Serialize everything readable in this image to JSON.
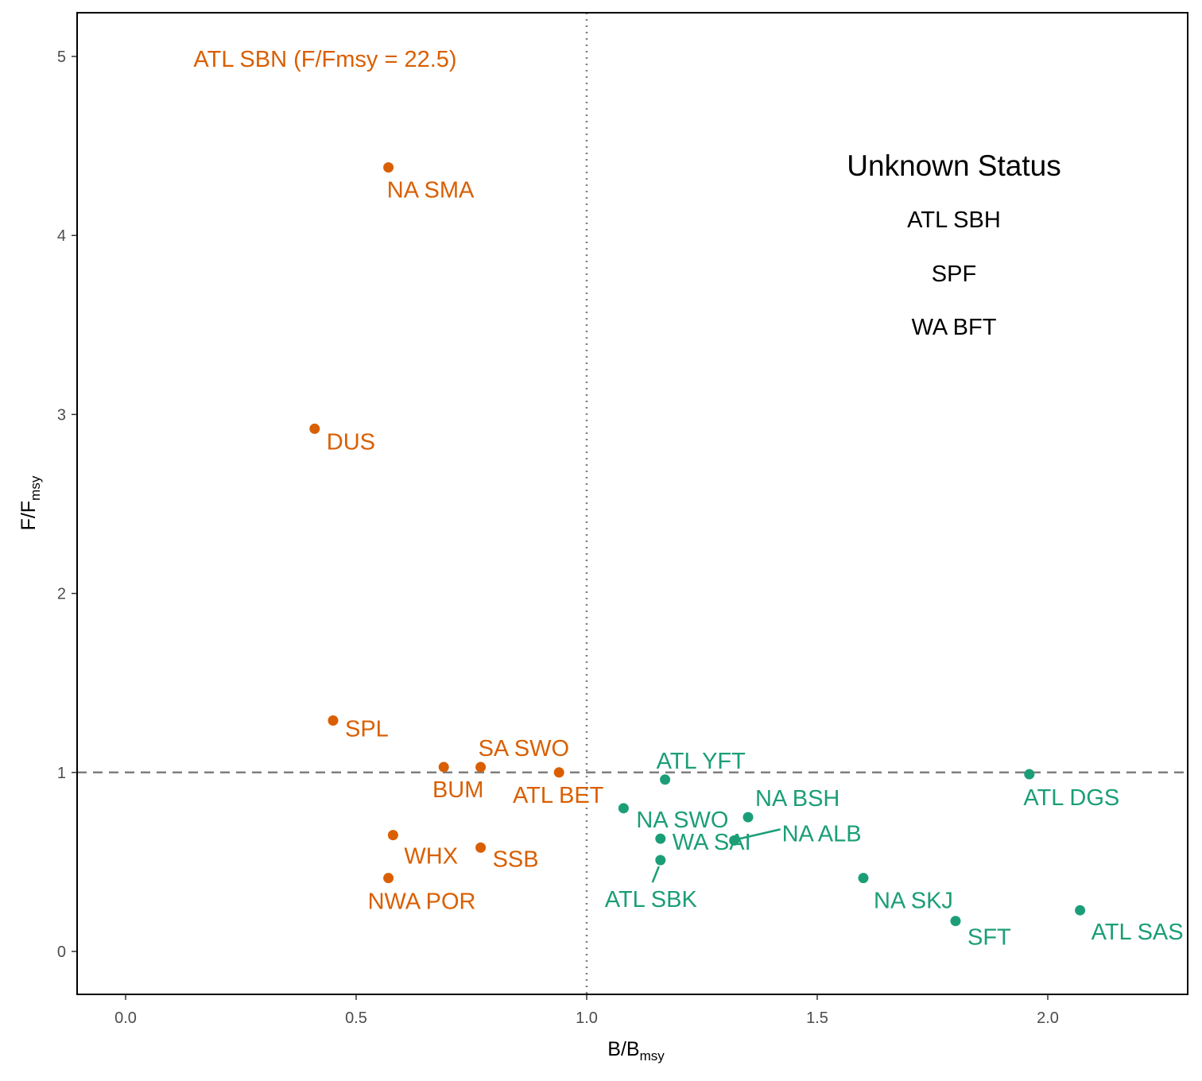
{
  "colors": {
    "overfished": "#d95f02",
    "healthy": "#1b9e77",
    "refline": "#7f7f7f",
    "text": "#000000",
    "tick": "#4d4d4d"
  },
  "chart_data": {
    "type": "scatter",
    "xlabel": {
      "main": "B/B",
      "sub": "msy"
    },
    "ylabel": {
      "main": "F/F",
      "sub": "msy"
    },
    "xlim": [
      -0.1,
      2.3
    ],
    "ylim": [
      -0.24,
      5.25
    ],
    "x_ticks": [
      "0.0",
      "0.5",
      "1.0",
      "1.5",
      "2.0"
    ],
    "y_ticks": [
      "0",
      "1",
      "2",
      "3",
      "4",
      "5"
    ],
    "grid": false,
    "reference_lines": [
      {
        "axis": "x",
        "value": 1.0,
        "style": "dotted"
      },
      {
        "axis": "y",
        "value": 1.0,
        "style": "dashed"
      }
    ],
    "offscale_note": {
      "label": "ATL SBN (F/Fmsy = 22.5)",
      "x": 0.38,
      "y": 5.0,
      "group": "overfished"
    },
    "series": [
      {
        "group": "overfished",
        "points": [
          {
            "label": "NA SMA",
            "x": 0.57,
            "y": 4.38
          },
          {
            "label": "DUS",
            "x": 0.41,
            "y": 2.92
          },
          {
            "label": "SPL",
            "x": 0.45,
            "y": 1.29
          },
          {
            "label": "SA SWO",
            "x": 0.77,
            "y": 1.03
          },
          {
            "label": "BUM",
            "x": 0.69,
            "y": 1.03
          },
          {
            "label": "ATL BET",
            "x": 0.94,
            "y": 1.0
          },
          {
            "label": "WHX",
            "x": 0.58,
            "y": 0.65
          },
          {
            "label": "SSB",
            "x": 0.77,
            "y": 0.58
          },
          {
            "label": "NWA POR",
            "x": 0.57,
            "y": 0.41
          }
        ]
      },
      {
        "group": "healthy",
        "points": [
          {
            "label": "ATL YFT",
            "x": 1.17,
            "y": 0.96
          },
          {
            "label": "ATL DGS",
            "x": 1.96,
            "y": 0.99
          },
          {
            "label": "NA BSH",
            "x": 1.35,
            "y": 0.75
          },
          {
            "label": "NA SWO",
            "x": 1.08,
            "y": 0.8
          },
          {
            "label": "NA ALB",
            "x": 1.32,
            "y": 0.62
          },
          {
            "label": "WA SAI",
            "x": 1.16,
            "y": 0.63
          },
          {
            "label": "ATL SBK",
            "x": 1.16,
            "y": 0.51
          },
          {
            "label": "NA SKJ",
            "x": 1.6,
            "y": 0.41
          },
          {
            "label": "SFT",
            "x": 1.8,
            "y": 0.17
          },
          {
            "label": "ATL SAS",
            "x": 2.07,
            "y": 0.23
          }
        ]
      }
    ],
    "unknown_status": {
      "title": "Unknown Status",
      "items": [
        "ATL SBH",
        "SPF",
        "WA BFT"
      ]
    }
  }
}
